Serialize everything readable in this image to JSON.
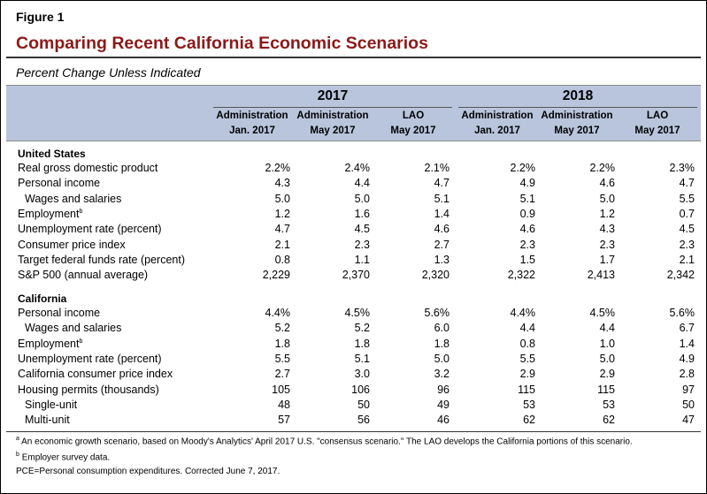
{
  "figure_label": "Figure 1",
  "title": "Comparing Recent California Economic Scenarios",
  "subtitle": "Percent Change Unless Indicated",
  "years": [
    "2017",
    "2018"
  ],
  "columns": [
    {
      "line1": "Administration",
      "line2": "Jan. 2017"
    },
    {
      "line1": "Administration",
      "line2": "May 2017"
    },
    {
      "line1": "LAO",
      "line2": "May 2017"
    },
    {
      "line1": "Administration",
      "line2": "Jan. 2017"
    },
    {
      "line1": "Administration",
      "line2": "May 2017"
    },
    {
      "line1": "LAO",
      "line2": "May 2017"
    }
  ],
  "sections": [
    {
      "title": "United States",
      "rows": [
        {
          "label": "Real gross domestic product",
          "values": [
            "2.2%",
            "2.4%",
            "2.1%",
            "2.2%",
            "2.2%",
            "2.3%"
          ]
        },
        {
          "label": "Personal income",
          "values": [
            "4.3",
            "4.4",
            "4.7",
            "4.9",
            "4.6",
            "4.7"
          ]
        },
        {
          "label": "Wages and salaries",
          "indent": true,
          "values": [
            "5.0",
            "5.0",
            "5.1",
            "5.1",
            "5.0",
            "5.5"
          ]
        },
        {
          "label": "Employment",
          "sup": "b",
          "values": [
            "1.2",
            "1.6",
            "1.4",
            "0.9",
            "1.2",
            "0.7"
          ]
        },
        {
          "label": "Unemployment rate (percent)",
          "values": [
            "4.7",
            "4.5",
            "4.6",
            "4.6",
            "4.3",
            "4.5"
          ]
        },
        {
          "label": "Consumer price index",
          "values": [
            "2.1",
            "2.3",
            "2.7",
            "2.3",
            "2.3",
            "2.3"
          ]
        },
        {
          "label": "Target federal funds rate (percent)",
          "values": [
            "0.8",
            "1.1",
            "1.3",
            "1.5",
            "1.7",
            "2.1"
          ]
        },
        {
          "label": "S&P 500 (annual average)",
          "values": [
            "2,229",
            "2,370",
            "2,320",
            "2,322",
            "2,413",
            "2,342"
          ]
        }
      ]
    },
    {
      "title": "California",
      "rows": [
        {
          "label": "Personal income",
          "values": [
            "4.4%",
            "4.5%",
            "5.6%",
            "4.4%",
            "4.5%",
            "5.6%"
          ]
        },
        {
          "label": "Wages and salaries",
          "indent": true,
          "values": [
            "5.2",
            "5.2",
            "6.0",
            "4.4",
            "4.4",
            "6.7"
          ]
        },
        {
          "label": "Employment",
          "sup": "b",
          "values": [
            "1.8",
            "1.8",
            "1.8",
            "0.8",
            "1.0",
            "1.4"
          ]
        },
        {
          "label": "Unemployment rate (percent)",
          "values": [
            "5.5",
            "5.1",
            "5.0",
            "5.5",
            "5.0",
            "4.9"
          ]
        },
        {
          "label": "California consumer price index",
          "values": [
            "2.7",
            "3.0",
            "3.2",
            "2.9",
            "2.9",
            "2.8"
          ]
        },
        {
          "label": "Housing permits (thousands)",
          "values": [
            "105",
            "106",
            "96",
            "115",
            "115",
            "97"
          ]
        },
        {
          "label": "Single-unit",
          "indent": true,
          "values": [
            "48",
            "50",
            "49",
            "53",
            "53",
            "50"
          ]
        },
        {
          "label": "Multi-unit",
          "indent": true,
          "values": [
            "57",
            "56",
            "46",
            "62",
            "62",
            "47"
          ]
        }
      ]
    }
  ],
  "footnotes": [
    {
      "sup": "a",
      "text": "An economic growth scenario, based on Moody's Analytics' April 2017 U.S.  \"consensus scenario.\" The LAO develops the California portions of this scenario."
    },
    {
      "sup": "b",
      "text": "Employer survey data."
    },
    {
      "text": "PCE=Personal consumption expenditures.  Corrected June 7, 2017."
    }
  ]
}
